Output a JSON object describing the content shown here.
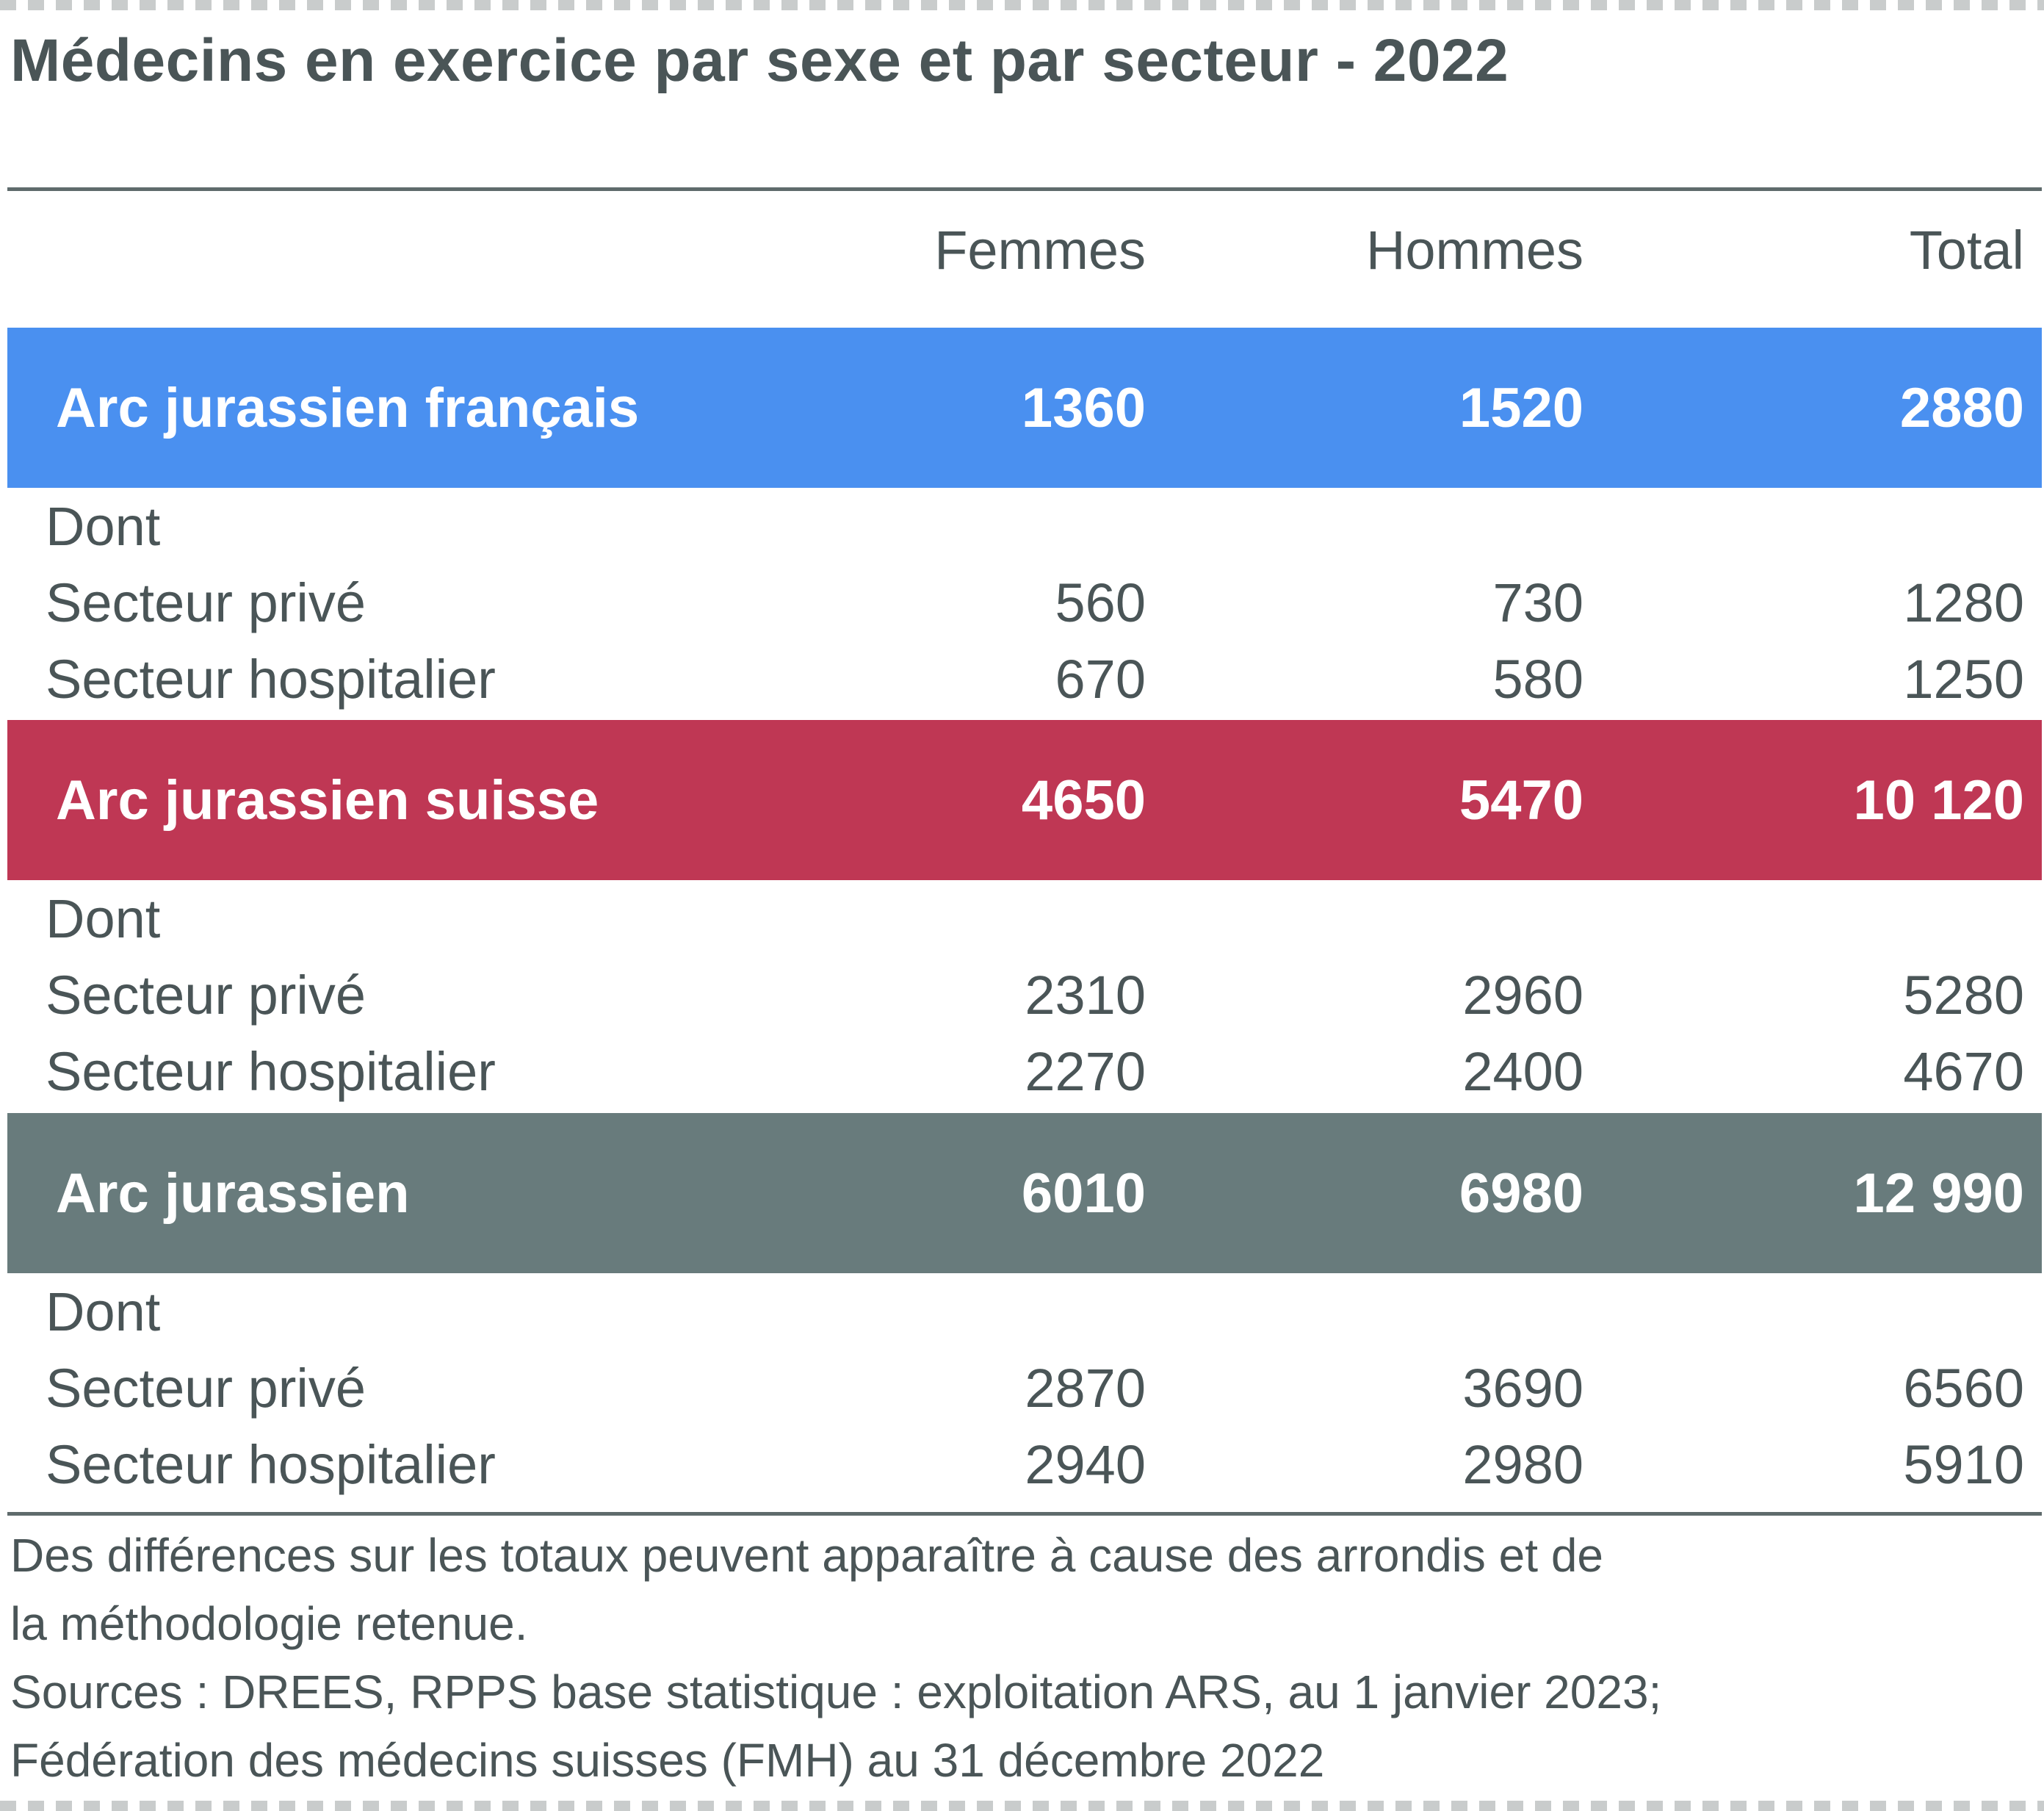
{
  "title": "Médecins en exercice par sexe et par secteur - 2022",
  "columns": [
    "Femmes",
    "Hommes",
    "Total"
  ],
  "groups": [
    {
      "name": "Arc jurassien français",
      "color": "#4a90f0",
      "values": [
        "1360",
        "1520",
        "2880"
      ],
      "dont_label": "Dont",
      "rows": [
        {
          "label": "Secteur privé",
          "values": [
            "560",
            "730",
            "1280"
          ]
        },
        {
          "label": "Secteur hospitalier",
          "values": [
            "670",
            "580",
            "1250"
          ]
        }
      ]
    },
    {
      "name": "Arc jurassien suisse",
      "color": "#bf3754",
      "values": [
        "4650",
        "5470",
        "10 120"
      ],
      "dont_label": "Dont",
      "rows": [
        {
          "label": "Secteur privé",
          "values": [
            "2310",
            "2960",
            "5280"
          ]
        },
        {
          "label": "Secteur hospitalier",
          "values": [
            "2270",
            "2400",
            "4670"
          ]
        }
      ]
    },
    {
      "name": "Arc jurassien",
      "color": "#687b7c",
      "values": [
        "6010",
        "6980",
        "12 990"
      ],
      "dont_label": "Dont",
      "rows": [
        {
          "label": "Secteur privé",
          "values": [
            "2870",
            "3690",
            "6560"
          ]
        },
        {
          "label": "Secteur hospitalier",
          "values": [
            "2940",
            "2980",
            "5910"
          ]
        }
      ]
    }
  ],
  "footnotes": [
    "Des différences sur les totaux peuvent apparaître à cause des arrondis et de",
    "la méthodologie retenue.",
    "Sources : DREES, RPPS base statistique : exploitation ARS, au 1 janvier 2023;",
    "Fédération des médecins suisses (FMH) au 31 décembre 2022"
  ]
}
